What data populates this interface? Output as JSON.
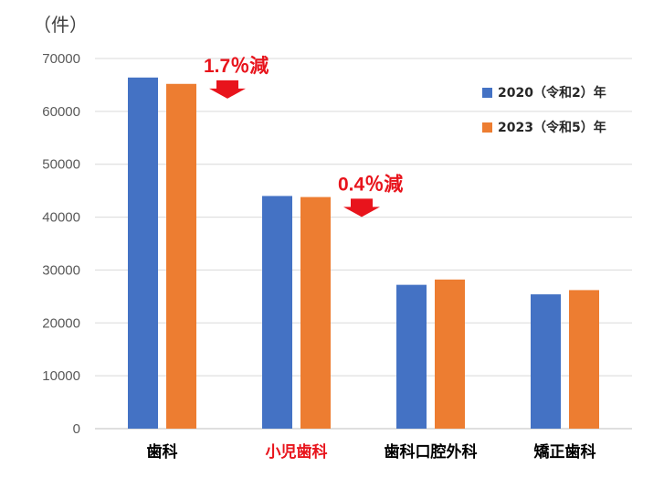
{
  "chart_data": {
    "type": "bar",
    "unit_label": "（件）",
    "categories": [
      "歯科",
      "小児歯科",
      "歯科口腔外科",
      "矯正歯科"
    ],
    "category_colors": [
      "#000000",
      "#e8141c",
      "#000000",
      "#000000"
    ],
    "series": [
      {
        "name": "2020（令和2）年",
        "color": "#4472c4",
        "values": [
          66400,
          44000,
          27200,
          25400
        ]
      },
      {
        "name": "2023（令和5）年",
        "color": "#ed7d31",
        "values": [
          65200,
          43800,
          28200,
          26200
        ]
      }
    ],
    "ylim": [
      0,
      70000
    ],
    "yticks": [
      0,
      10000,
      20000,
      30000,
      40000,
      50000,
      60000,
      70000
    ],
    "grid": true,
    "legend_position": "top-right",
    "annotations": [
      {
        "text": "1.7％減",
        "category_index": 0,
        "color": "#e8141c"
      },
      {
        "text": "0.4％減",
        "category_index": 1,
        "color": "#e8141c"
      }
    ]
  }
}
